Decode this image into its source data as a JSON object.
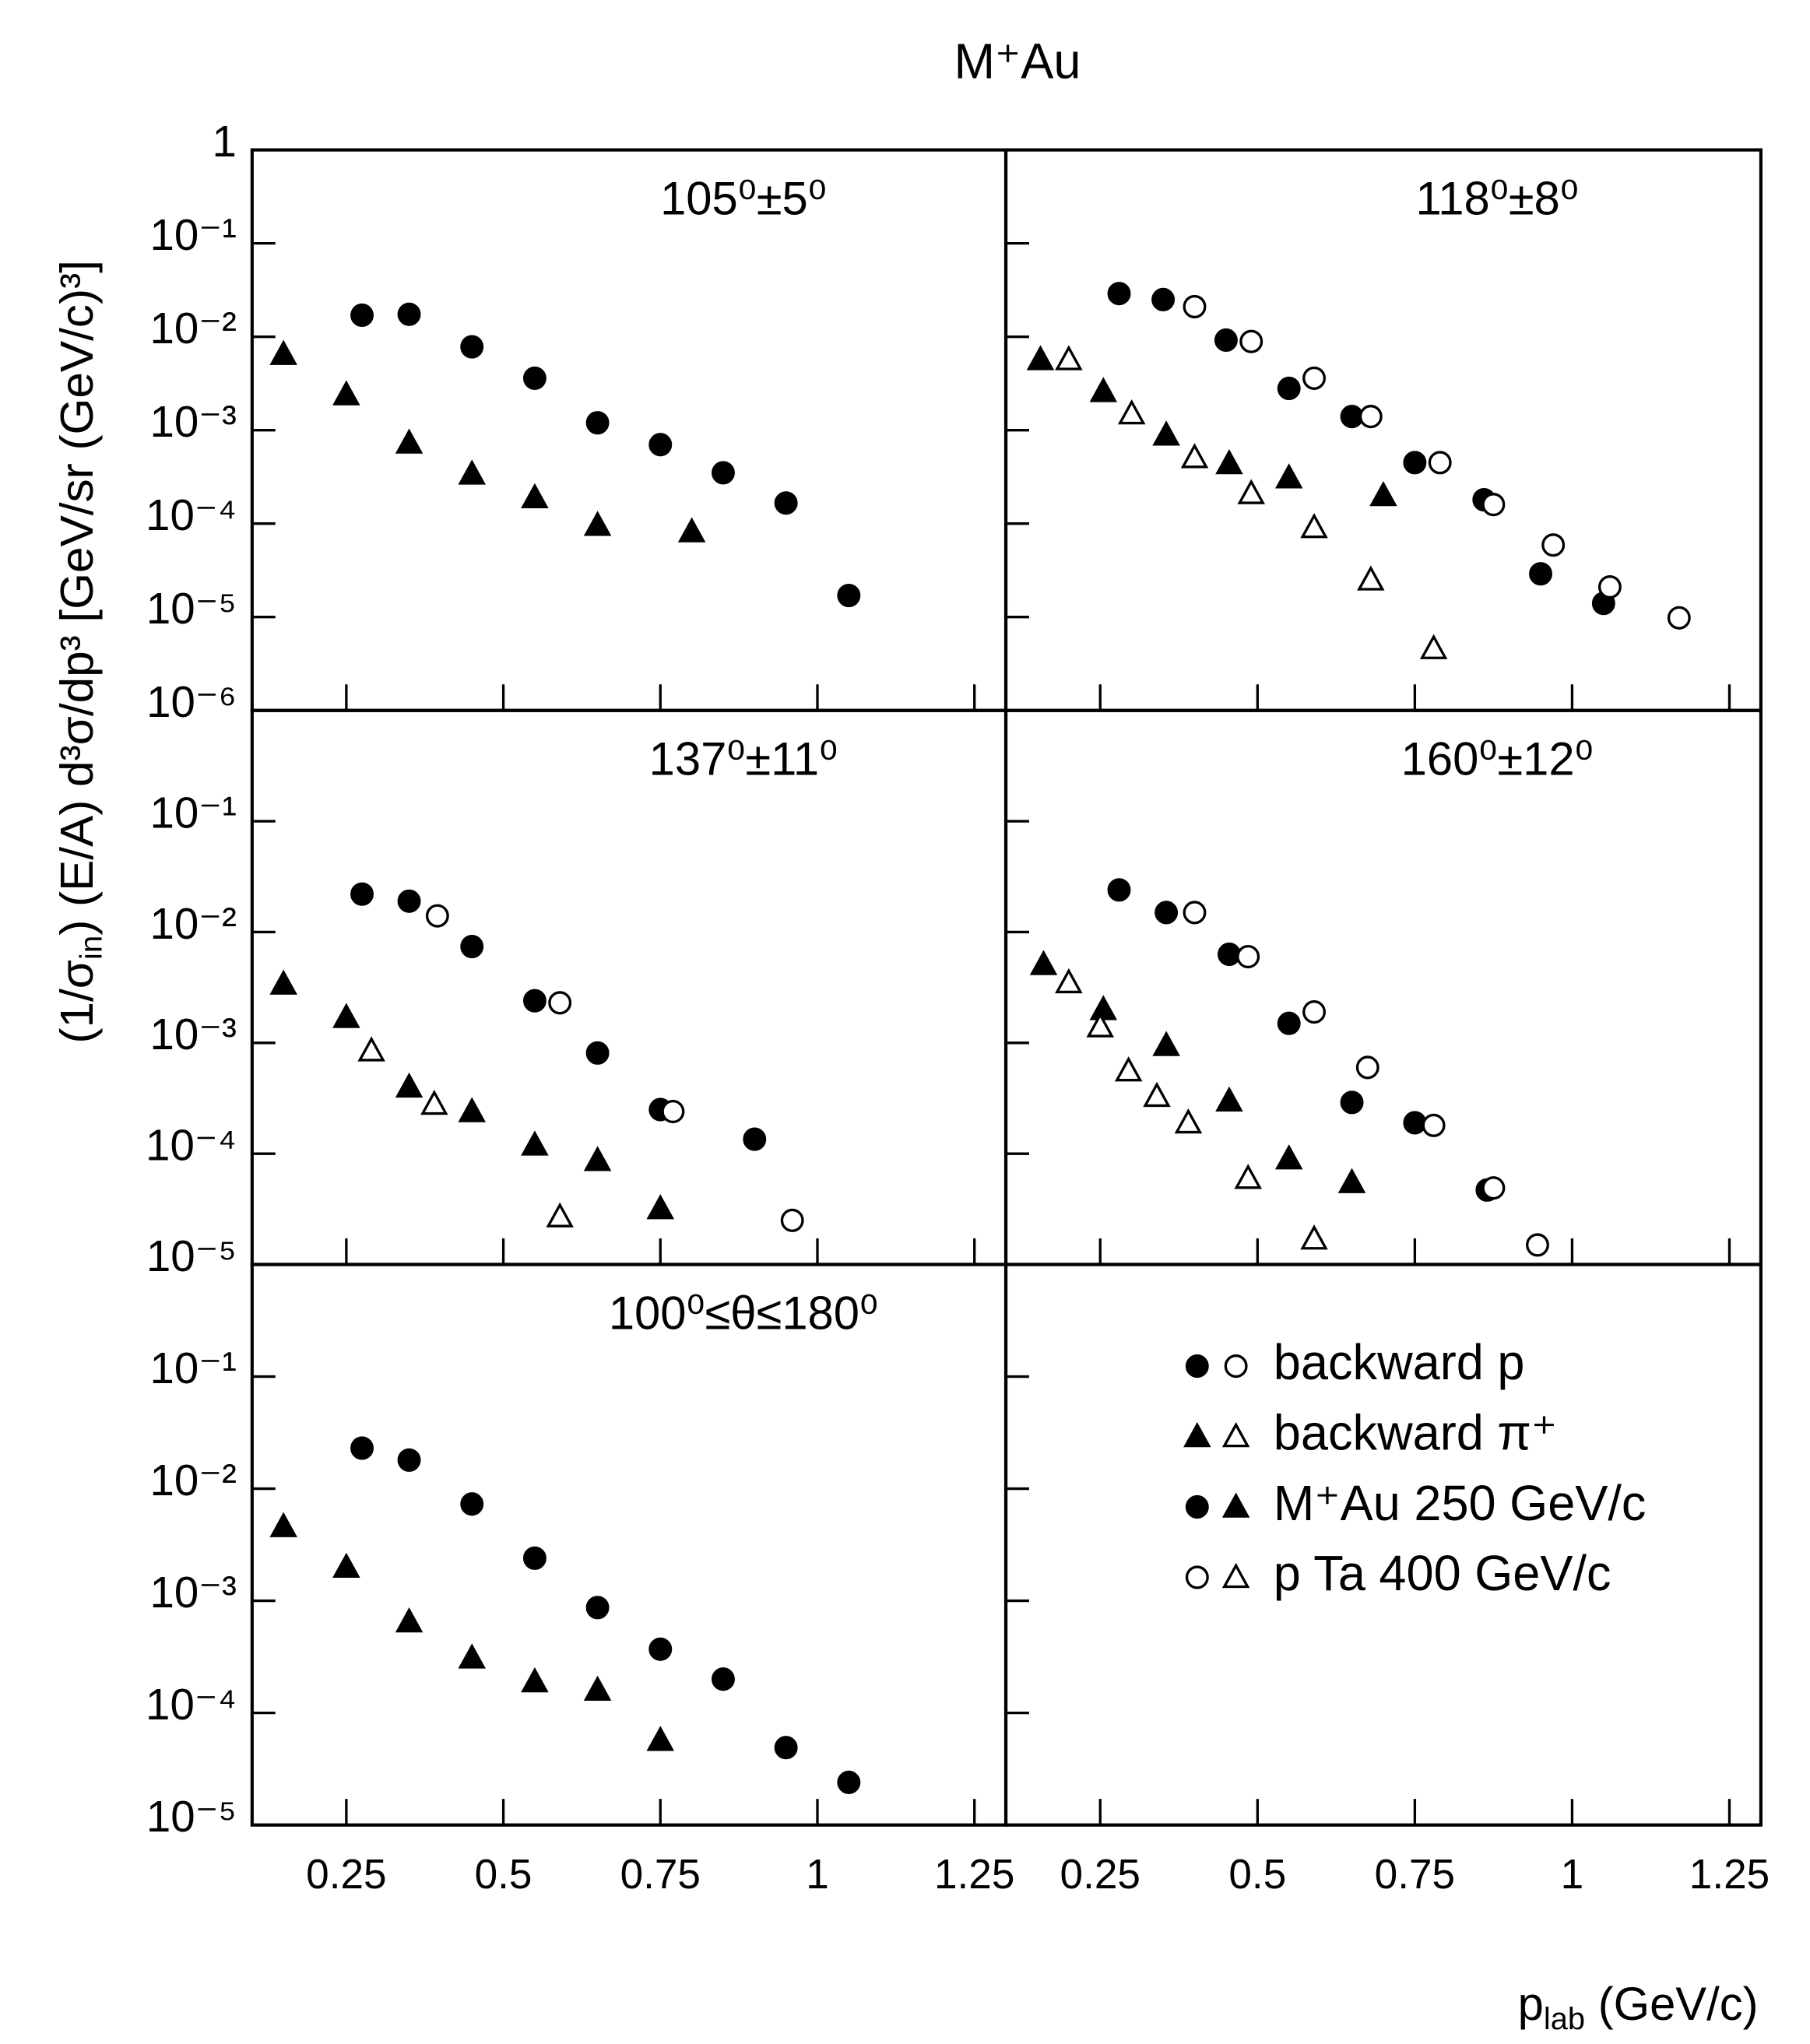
{
  "title": "M⁺Au",
  "xlabel": {
    "text1": "p",
    "sub": "lab",
    "text2": " (GeV/c)"
  },
  "ylabel": {
    "text1": "(1/σ",
    "sub": "in",
    "text2": ") (E/A) d³σ/dp³  [GeV/sr (GeV/c)³]"
  },
  "legend": [
    {
      "label": "backward p",
      "markers": [
        "filled-circle",
        "open-circle"
      ]
    },
    {
      "label": "backward π⁺",
      "markers": [
        "filled-triangle",
        "open-triangle"
      ]
    },
    {
      "label": "M⁺Au 250 GeV/c",
      "markers": [
        "filled-circle",
        "filled-triangle"
      ]
    },
    {
      "label": "p Ta 400 GeV/c",
      "markers": [
        "open-circle",
        "open-triangle"
      ]
    }
  ],
  "chart_data": [
    {
      "type": "scatter",
      "title": "105⁰±5⁰",
      "ylog": true,
      "xlim": [
        0.1,
        1.3
      ],
      "xticks": [
        0.25,
        0.5,
        0.75,
        1,
        1.25
      ],
      "xtick_labels": false,
      "ylim": [
        1e-06,
        1
      ],
      "ytick_labels": true,
      "yticks": [
        1,
        {
          "value": 0.1,
          "label": "10⁻¹"
        },
        {
          "value": 0.01,
          "label": "10⁻²"
        },
        {
          "value": 0.001,
          "label": "10⁻³"
        },
        {
          "value": 0.0001,
          "label": "10⁻⁴"
        },
        {
          "value": 1e-05,
          "label": "10⁻⁵"
        },
        {
          "value": 1e-06,
          "label": "10⁻⁶"
        }
      ],
      "series": [
        {
          "marker": "filled-circle",
          "color": "#000000",
          "x": [
            0.275,
            0.35,
            0.45,
            0.55,
            0.65,
            0.75,
            0.85,
            0.95,
            1.05
          ],
          "values": [
            0.017,
            0.0174,
            0.0078,
            0.0036,
            0.0012,
            0.0007,
            0.00035,
            0.000166,
            1.7e-05
          ]
        },
        {
          "marker": "filled-triangle",
          "color": "#000000",
          "x": [
            0.15,
            0.25,
            0.35,
            0.45,
            0.55,
            0.65,
            0.8
          ],
          "values": [
            0.0065,
            0.0024,
            0.00073,
            0.00034,
            0.00019,
            9.6e-05,
            8.2e-05
          ]
        }
      ]
    },
    {
      "type": "scatter",
      "title": "118⁰±8⁰",
      "ylog": true,
      "xlim": [
        0.1,
        1.3
      ],
      "xticks": [
        0.25,
        0.5,
        0.75,
        1,
        1.25
      ],
      "xtick_labels": false,
      "ylim": [
        1e-06,
        1
      ],
      "ytick_labels": false,
      "yticks": [
        1,
        0.1,
        0.01,
        0.001,
        0.0001,
        1e-05,
        1e-06
      ],
      "series": [
        {
          "marker": "filled-circle",
          "color": "#000000",
          "x": [
            0.28,
            0.35,
            0.45,
            0.55,
            0.65,
            0.75,
            0.86,
            0.95,
            1.05
          ],
          "values": [
            0.029,
            0.025,
            0.0092,
            0.0028,
            0.0014,
            0.00045,
            0.00018,
            2.9e-05,
            1.4e-05
          ]
        },
        {
          "marker": "open-circle",
          "color": "#000000",
          "x": [
            0.4,
            0.49,
            0.59,
            0.68,
            0.79,
            0.875,
            0.97,
            1.06,
            1.17
          ],
          "values": [
            0.021,
            0.0089,
            0.0036,
            0.0014,
            0.00045,
            0.00016,
            5.9e-05,
            2.1e-05,
            9.8e-06
          ]
        },
        {
          "marker": "filled-triangle",
          "color": "#000000",
          "x": [
            0.155,
            0.255,
            0.355,
            0.455,
            0.55,
            0.7
          ],
          "values": [
            0.0057,
            0.0026,
            0.00089,
            0.00044,
            0.00031,
            0.0002
          ]
        },
        {
          "marker": "open-triangle",
          "color": "#000000",
          "x": [
            0.2,
            0.3,
            0.4,
            0.49,
            0.59,
            0.68,
            0.78
          ],
          "values": [
            0.0057,
            0.0015,
            0.00051,
            0.00021,
            9.1e-05,
            2.5e-05,
            4.6e-06
          ]
        }
      ]
    },
    {
      "type": "scatter",
      "title": "137⁰±11⁰",
      "ylog": true,
      "xlim": [
        0.1,
        1.3
      ],
      "xticks": [
        0.25,
        0.5,
        0.75,
        1,
        1.25
      ],
      "xtick_labels": false,
      "ylim": [
        1e-05,
        1
      ],
      "ytick_labels": true,
      "yticks": [
        {
          "value": 0.1,
          "label": "10⁻¹"
        },
        {
          "value": 0.01,
          "label": "10⁻²"
        },
        {
          "value": 0.001,
          "label": "10⁻³"
        },
        {
          "value": 0.0001,
          "label": "10⁻⁴"
        },
        {
          "value": 1e-05,
          "label": "10⁻⁵"
        }
      ],
      "series": [
        {
          "marker": "filled-circle",
          "color": "#000000",
          "x": [
            0.275,
            0.35,
            0.45,
            0.55,
            0.65,
            0.75,
            0.9
          ],
          "values": [
            0.022,
            0.019,
            0.0074,
            0.0024,
            0.00081,
            0.00025,
            0.000135
          ]
        },
        {
          "marker": "open-circle",
          "color": "#000000",
          "x": [
            0.395,
            0.59,
            0.77,
            0.96
          ],
          "values": [
            0.014,
            0.0023,
            0.00024,
            2.5e-05
          ]
        },
        {
          "marker": "filled-triangle",
          "color": "#000000",
          "x": [
            0.15,
            0.25,
            0.35,
            0.45,
            0.55,
            0.65,
            0.75
          ],
          "values": [
            0.0034,
            0.0017,
            0.0004,
            0.00024,
            0.00012,
            8.7e-05,
            3.2e-05
          ]
        },
        {
          "marker": "open-triangle",
          "color": "#000000",
          "x": [
            0.29,
            0.39,
            0.59
          ],
          "values": [
            0.00085,
            0.00028,
            2.7e-05
          ]
        }
      ]
    },
    {
      "type": "scatter",
      "title": "160⁰±12⁰",
      "ylog": true,
      "xlim": [
        0.1,
        1.3
      ],
      "xticks": [
        0.25,
        0.5,
        0.75,
        1,
        1.25
      ],
      "xtick_labels": false,
      "ylim": [
        1e-05,
        1
      ],
      "ytick_labels": false,
      "yticks": [
        0.1,
        0.01,
        0.001,
        0.0001,
        1e-05
      ],
      "series": [
        {
          "marker": "filled-circle",
          "color": "#000000",
          "x": [
            0.28,
            0.355,
            0.455,
            0.55,
            0.65,
            0.75,
            0.865
          ],
          "values": [
            0.024,
            0.015,
            0.0063,
            0.0015,
            0.00029,
            0.00019,
            4.7e-05
          ]
        },
        {
          "marker": "open-circle",
          "color": "#000000",
          "x": [
            0.4,
            0.485,
            0.59,
            0.675,
            0.78,
            0.875,
            0.945
          ],
          "values": [
            0.015,
            0.006,
            0.0019,
            0.0006,
            0.00018,
            4.9e-05,
            1.5e-05
          ]
        },
        {
          "marker": "filled-triangle",
          "color": "#000000",
          "x": [
            0.16,
            0.255,
            0.355,
            0.455,
            0.55,
            0.65
          ],
          "values": [
            0.0051,
            0.002,
            0.00095,
            0.0003,
            9e-05,
            5.5e-05
          ]
        },
        {
          "marker": "open-triangle",
          "color": "#000000",
          "x": [
            0.2,
            0.25,
            0.295,
            0.34,
            0.39,
            0.485,
            0.59
          ],
          "values": [
            0.0035,
            0.0014,
            0.00056,
            0.00033,
            0.00019,
            6e-05,
            1.7e-05
          ]
        }
      ]
    },
    {
      "type": "scatter",
      "title": "100⁰≤θ≤180⁰",
      "ylog": true,
      "xlim": [
        0.1,
        1.3
      ],
      "xticks": [
        0.25,
        0.5,
        0.75,
        1,
        1.25
      ],
      "xtick_labels": true,
      "ylim": [
        1e-05,
        1
      ],
      "ytick_labels": true,
      "yticks": [
        {
          "value": 0.1,
          "label": "10⁻¹"
        },
        {
          "value": 0.01,
          "label": "10⁻²"
        },
        {
          "value": 0.001,
          "label": "10⁻³"
        },
        {
          "value": 0.0001,
          "label": "10⁻⁴"
        },
        {
          "value": 1e-05,
          "label": "10⁻⁵"
        }
      ],
      "series": [
        {
          "marker": "filled-circle",
          "color": "#000000",
          "x": [
            0.275,
            0.35,
            0.45,
            0.55,
            0.65,
            0.75,
            0.85,
            0.95,
            1.05
          ],
          "values": [
            0.023,
            0.018,
            0.0073,
            0.0024,
            0.00087,
            0.00037,
            0.0002,
            4.9e-05,
            2.4e-05
          ]
        },
        {
          "marker": "filled-triangle",
          "color": "#000000",
          "x": [
            0.15,
            0.25,
            0.35,
            0.45,
            0.55,
            0.65,
            0.75
          ],
          "values": [
            0.0046,
            0.002,
            0.00065,
            0.00031,
            0.00019,
            0.00016,
            5.7e-05
          ]
        }
      ]
    },
    {
      "type": "scatter",
      "ylog": true,
      "xlim": [
        0.1,
        1.3
      ],
      "xticks": [
        0.25,
        0.5,
        0.75,
        1,
        1.25
      ],
      "xtick_labels": true,
      "ylim": [
        1e-05,
        1
      ],
      "ytick_labels": false,
      "yticks": [
        0.1,
        0.01,
        0.001,
        0.0001,
        1e-05
      ],
      "series": []
    }
  ]
}
